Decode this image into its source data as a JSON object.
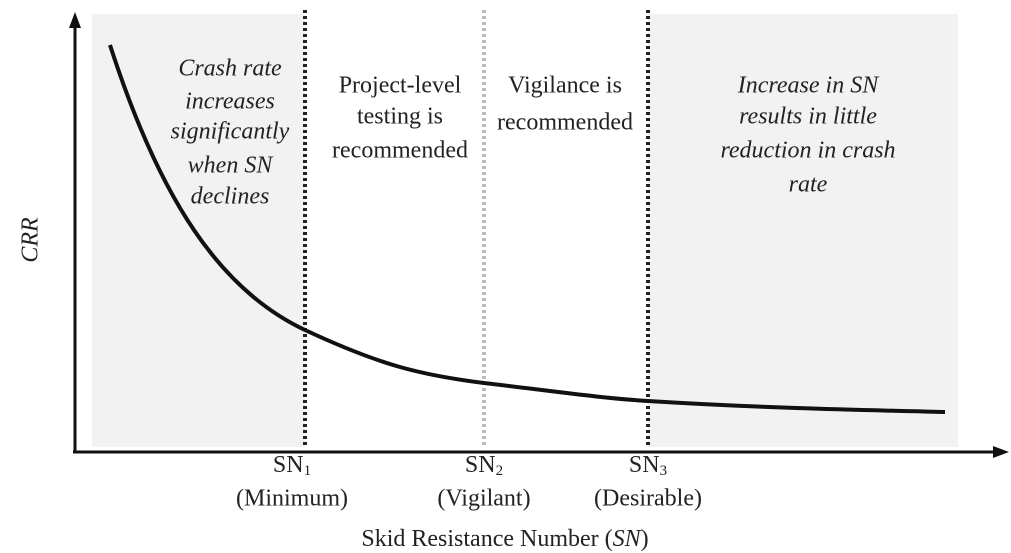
{
  "axes": {
    "y_label": "CRR",
    "x_label": [
      "Skid Resistance  Number (",
      "SN",
      ")"
    ]
  },
  "thresholds": [
    {
      "symbol": "SN",
      "subscript": "1",
      "name": "(Minimum)"
    },
    {
      "symbol": "SN",
      "subscript": "2",
      "name": "(Vigilant)"
    },
    {
      "symbol": "SN",
      "subscript": "3",
      "name": "(Desirable)"
    }
  ],
  "regions": [
    {
      "lines": [
        "Crash rate",
        "increases",
        "significantly",
        "when SN",
        "declines"
      ]
    },
    {
      "lines": [
        "Project-level",
        "testing is",
        "recommended"
      ]
    },
    {
      "lines": [
        "Vigilance is",
        "recommended"
      ]
    },
    {
      "lines": [
        "Increase in SN",
        "results in little",
        "reduction in crash",
        "rate"
      ]
    }
  ]
}
